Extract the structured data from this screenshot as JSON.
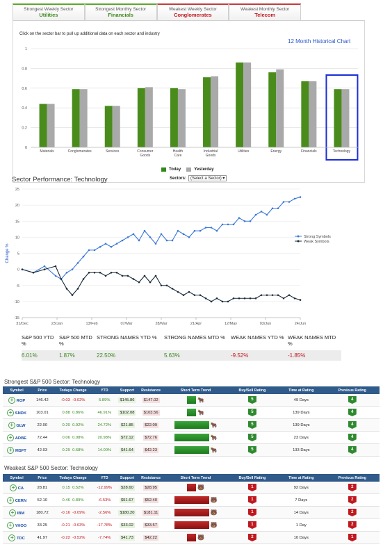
{
  "tabs": [
    {
      "sub": "Strongest Weekly Sector",
      "value": "Utilities"
    },
    {
      "sub": "Strongest Monthly Sector",
      "value": "Financials"
    },
    {
      "sub": "Weakest Weekly Sector",
      "value": "Conglomerates"
    },
    {
      "sub": "Weakest Monthly Sector",
      "value": "Telecom"
    }
  ],
  "sector_chart": {
    "instruction": "Click on the sector bar to pull up additional data on each sector and industry",
    "historical_link": "12 Month Historical Chart",
    "legend_today": "Today",
    "legend_yesterday": "Yesterday",
    "sector_label": "Sectors:",
    "sector_select": "(Select a Sector)",
    "colors": {
      "today": "#5a9c22",
      "yesterday": "#a9a9a9",
      "selected": "#1a2fd8"
    }
  },
  "perf": {
    "title": "Sector Performance: Technology",
    "ylabel": "Change %",
    "strong_label": "Strong Symbols",
    "weak_label": "Weak Symbols"
  },
  "summary": {
    "headers": [
      "S&P 500 YTD %",
      "S&P 500 MTD %",
      "STRONG NAMES YTD %",
      "STRONG NAMES MTD %",
      "WEAK NAMES YTD %",
      "WEAK NAMES MTD %"
    ],
    "values": [
      "6.01%",
      "1.87%",
      "22.50%",
      "5.63%",
      "-9.52%",
      "-1.85%"
    ]
  },
  "strong_table": {
    "title": "Strongest S&P 500 Sector: Technology",
    "headers": [
      "Symbol",
      "Price",
      "Todays Change",
      "YTD",
      "Support",
      "Resistance",
      "Short Term Trend",
      "Buy/Sell Rating",
      "Time at Rating",
      "Previous Rating"
    ],
    "rows": [
      {
        "symbol": "ROP",
        "price": "146.42",
        "chg": "-0.03",
        "chgpct": "-0.02%",
        "ytd": "5.89%",
        "support": "$145.86",
        "resistance": "$147.02",
        "trend": 0.25,
        "rating": "5",
        "time": "49 Days",
        "prev": "4"
      },
      {
        "symbol": "SNDK",
        "price": "103.01",
        "chg": "0.88",
        "chgpct": "0.86%",
        "ytd": "46.91%",
        "support": "$102.08",
        "resistance": "$103.56",
        "trend": 0.25,
        "rating": "5",
        "time": "139 Days",
        "prev": "4"
      },
      {
        "symbol": "GLW",
        "price": "22.00",
        "chg": "0.20",
        "chgpct": "0.92%",
        "ytd": "24.72%",
        "support": "$21.85",
        "resistance": "$22.09",
        "trend": 1,
        "rating": "5",
        "time": "139 Days",
        "prev": "4"
      },
      {
        "symbol": "ADBE",
        "price": "72.44",
        "chg": "0.06",
        "chgpct": "0.08%",
        "ytd": "20.98%",
        "support": "$72.12",
        "resistance": "$72.76",
        "trend": 1,
        "rating": "5",
        "time": "23 Days",
        "prev": "4"
      },
      {
        "symbol": "MSFT",
        "price": "42.03",
        "chg": "0.29",
        "chgpct": "0.68%",
        "ytd": "14.00%",
        "support": "$41.64",
        "resistance": "$42.23",
        "trend": 1,
        "rating": "5",
        "time": "133 Days",
        "prev": "4"
      }
    ]
  },
  "weak_table": {
    "title": "Weakest S&P 500 Sector: Technology",
    "headers": [
      "Symbol",
      "Price",
      "Todays Change",
      "YTD",
      "Support",
      "Resistance",
      "Short Term Trend",
      "Buy/Sell Rating",
      "Time at Rating",
      "Previous Rating"
    ],
    "rows": [
      {
        "symbol": "CA",
        "price": "28.81",
        "chg": "0.15",
        "chgpct": "0.52%",
        "ytd": "-12.99%",
        "support": "$28.60",
        "resistance": "$28.95",
        "trend": 0.25,
        "rating": "1",
        "time": "92 Days",
        "prev": "2"
      },
      {
        "symbol": "CERN",
        "price": "52.10",
        "chg": "0.46",
        "chgpct": "0.89%",
        "ytd": "-6.53%",
        "support": "$51.67",
        "resistance": "$52.40",
        "trend": 1,
        "rating": "1",
        "time": "7 Days",
        "prev": "2"
      },
      {
        "symbol": "IBM",
        "price": "180.72",
        "chg": "-0.16",
        "chgpct": "-0.09%",
        "ytd": "-2.56%",
        "support": "$180.20",
        "resistance": "$181.11",
        "trend": 1,
        "rating": "1",
        "time": "14 Days",
        "prev": "2"
      },
      {
        "symbol": "YHOO",
        "price": "33.25",
        "chg": "-0.21",
        "chgpct": "-0.63%",
        "ytd": "-17.78%",
        "support": "$33.02",
        "resistance": "$33.57",
        "trend": 1,
        "rating": "1",
        "time": "1 Day",
        "prev": "2"
      },
      {
        "symbol": "TDC",
        "price": "41.97",
        "chg": "-0.22",
        "chgpct": "-0.52%",
        "ytd": "-7.74%",
        "support": "$41.73",
        "resistance": "$42.22",
        "trend": 0.25,
        "rating": "2",
        "time": "10 Days",
        "prev": "1"
      }
    ]
  },
  "chart_data": [
    {
      "type": "bar",
      "categories": [
        "Materials",
        "Conglomerates",
        "Services",
        "Consumer Goods",
        "Health Care",
        "Industrial Goods",
        "Utilities",
        "Energy",
        "Financials",
        "Technology"
      ],
      "series": [
        {
          "name": "Today",
          "values": [
            0.44,
            0.59,
            0.42,
            0.6,
            0.6,
            0.71,
            0.86,
            0.76,
            0.67,
            0.59
          ]
        },
        {
          "name": "Yesterday",
          "values": [
            0.44,
            0.59,
            0.42,
            0.61,
            0.59,
            0.72,
            0.86,
            0.79,
            0.67,
            0.59
          ]
        }
      ],
      "ylim": [
        0,
        1
      ],
      "yticks": [
        "0",
        "0.2",
        "0.4",
        "0.6",
        "0.8",
        "1"
      ]
    },
    {
      "type": "line",
      "xticks": [
        "31/Dec",
        "23/Jan",
        "13/Feb",
        "07/Mar",
        "28/Mar",
        "21/Apr",
        "12/May",
        "03/Jun",
        "24/Jun"
      ],
      "yticks": [
        "-15",
        "-10",
        "-5",
        "0",
        "5",
        "10",
        "15",
        "20",
        "25"
      ],
      "ylim": [
        -15,
        25
      ],
      "series": [
        {
          "name": "Strong Symbols",
          "x": [
            0,
            4,
            8,
            12,
            14,
            16,
            18,
            20,
            22,
            24,
            26,
            28,
            30,
            32,
            34,
            36,
            38,
            40,
            42,
            44,
            46,
            48,
            50,
            52,
            54,
            56,
            58,
            60,
            62,
            64,
            66,
            68,
            70,
            72,
            74,
            76,
            78,
            80,
            82,
            84,
            86,
            88,
            90,
            92,
            94,
            96,
            98,
            100
          ],
          "y": [
            0,
            -1,
            1,
            -2,
            -3,
            -1,
            0,
            2,
            4,
            6,
            6,
            7,
            8,
            7,
            8,
            9,
            10,
            11,
            9,
            12,
            10,
            8,
            11,
            9,
            9,
            12,
            11,
            10,
            12,
            12,
            13,
            13,
            12,
            14,
            14,
            14,
            16,
            15,
            15,
            17,
            18,
            17,
            19,
            19,
            21,
            21,
            22,
            22.5
          ]
        },
        {
          "name": "Weak Symbols",
          "x": [
            0,
            4,
            8,
            12,
            14,
            16,
            18,
            20,
            22,
            24,
            26,
            28,
            30,
            32,
            34,
            36,
            38,
            40,
            42,
            44,
            46,
            48,
            50,
            52,
            54,
            56,
            58,
            60,
            62,
            64,
            66,
            68,
            70,
            72,
            74,
            76,
            78,
            80,
            82,
            84,
            86,
            88,
            90,
            92,
            94,
            96,
            98,
            100
          ],
          "y": [
            0,
            -1,
            0,
            1,
            -3,
            -6,
            -8,
            -6,
            -3,
            -1,
            -1,
            -1,
            -2,
            -1,
            -1,
            -2,
            -2,
            -3,
            -4,
            -2,
            -4,
            -2,
            -5,
            -5,
            -6,
            -7,
            -8,
            -7,
            -8,
            -8,
            -9,
            -10,
            -9,
            -10,
            -10,
            -9,
            -9,
            -9,
            -9,
            -9,
            -8,
            -8,
            -8,
            -8,
            -9,
            -8,
            -9,
            -9.5
          ]
        }
      ]
    }
  ]
}
